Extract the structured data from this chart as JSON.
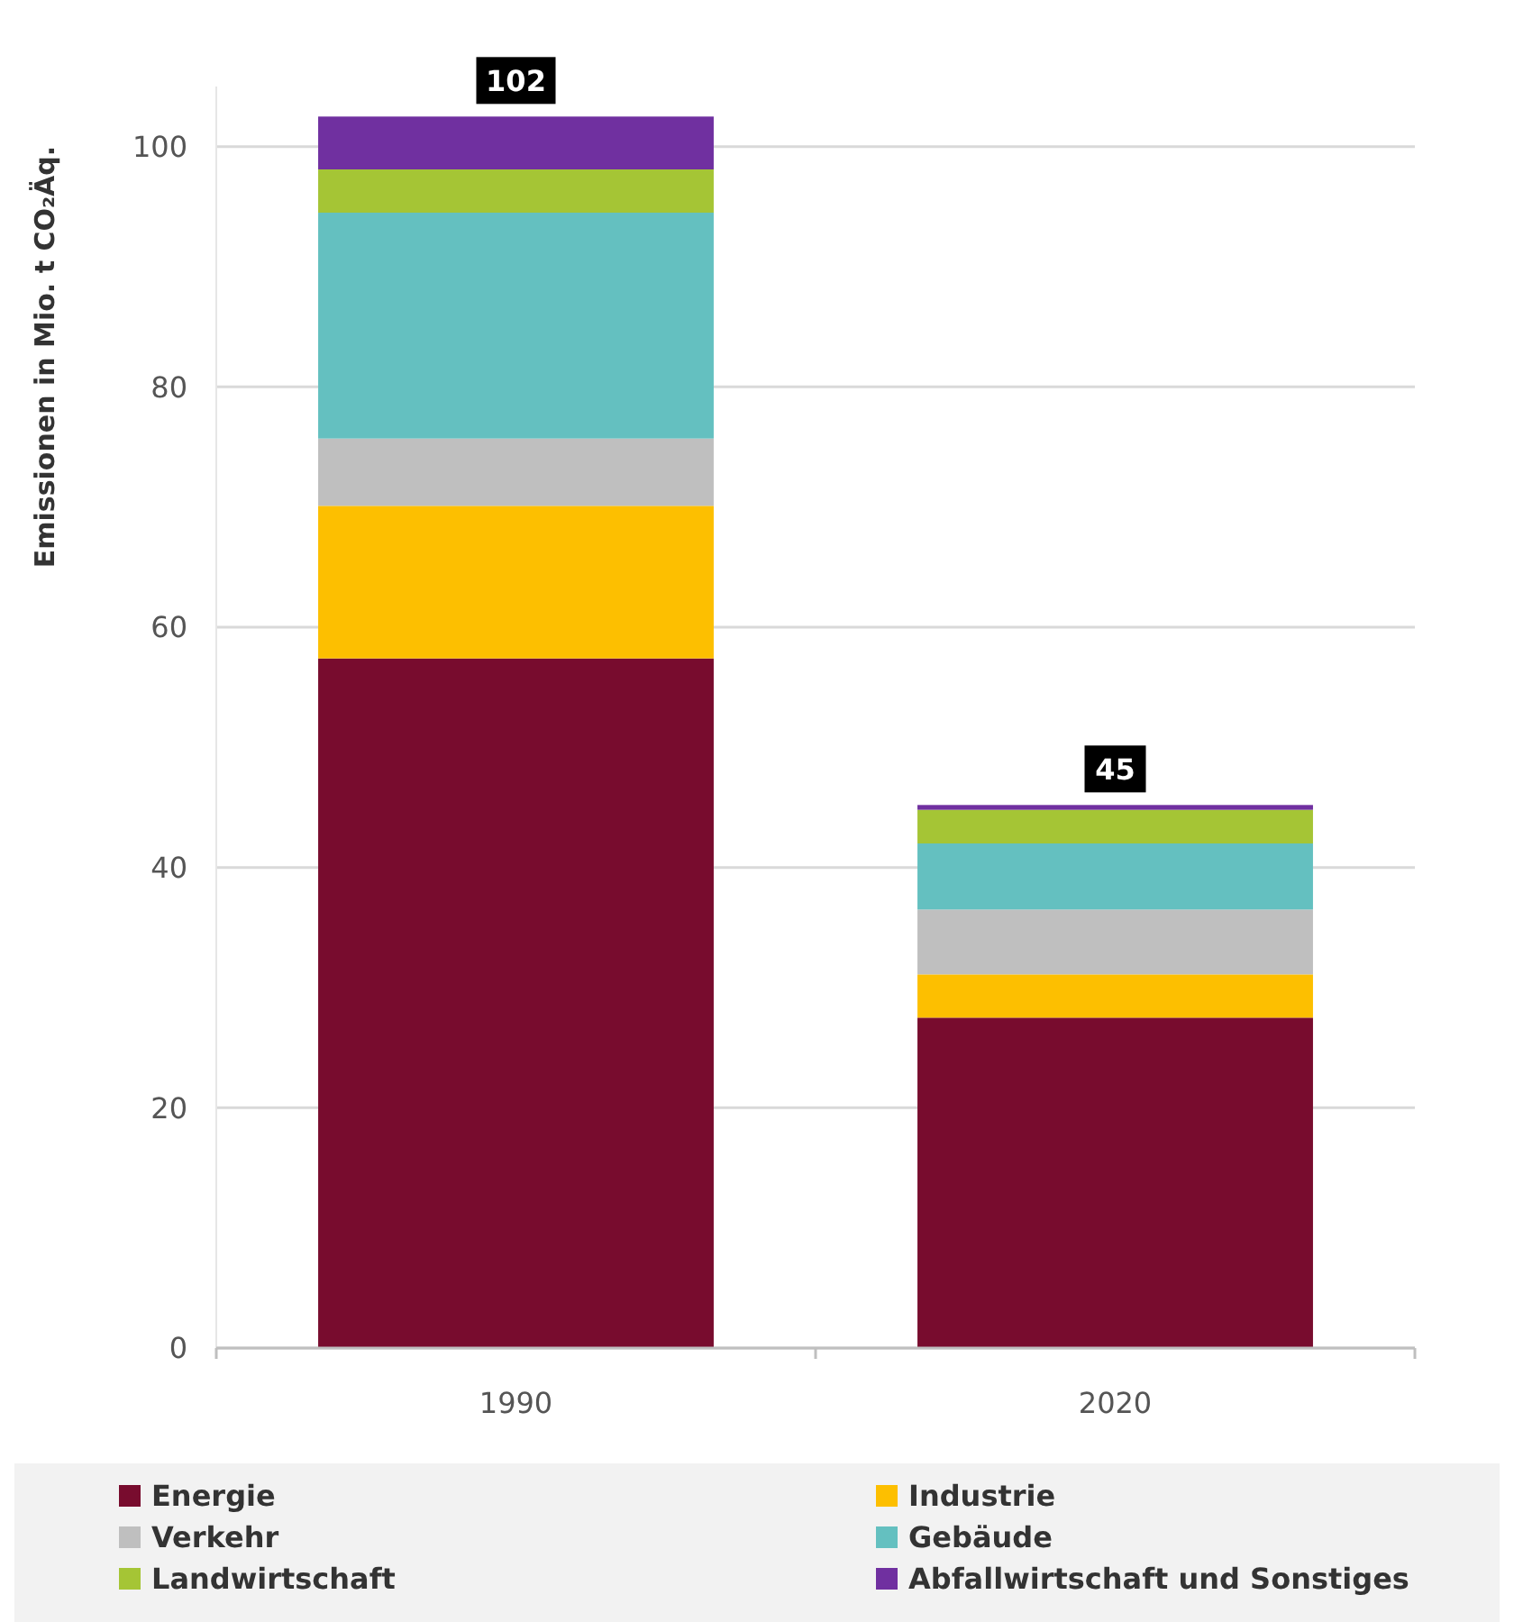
{
  "chart_data": {
    "type": "bar",
    "stacked": true,
    "ylabel": "Emissionen in Mio. t CO₂Äq.",
    "categories": [
      "1990",
      "2020"
    ],
    "series": [
      {
        "name": "Energie",
        "color": "#780c2e",
        "values": [
          57.4,
          27.5
        ]
      },
      {
        "name": "Industrie",
        "color": "#fdbf00",
        "values": [
          12.7,
          3.6
        ]
      },
      {
        "name": "Verkehr",
        "color": "#bfbfbf",
        "values": [
          5.6,
          5.4
        ]
      },
      {
        "name": "Gebäude",
        "color": "#64c0c0",
        "values": [
          18.8,
          5.5
        ]
      },
      {
        "name": "Landwirtschaft",
        "color": "#a5c535",
        "values": [
          3.6,
          2.8
        ]
      },
      {
        "name": "Abfallwirtschaft und Sonstiges",
        "color": "#7030a0",
        "values": [
          4.4,
          0.4
        ]
      }
    ],
    "totals": [
      "102",
      "45"
    ],
    "ylim": [
      0,
      105
    ],
    "yticks": [
      0,
      20,
      40,
      60,
      80,
      100
    ],
    "grid": "y",
    "legend": "bottom"
  }
}
